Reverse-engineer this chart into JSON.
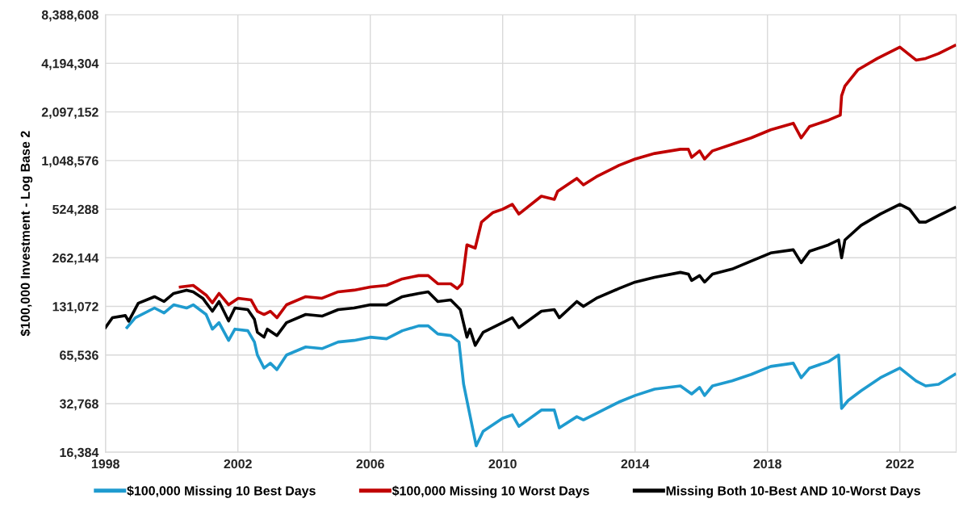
{
  "chart_data": {
    "type": "line",
    "ylabel": "$100,000 Investment - Log Base 2",
    "log": "y",
    "grid": true,
    "legend": "bottom",
    "marker": "none",
    "line_style": "solid",
    "xlim": [
      1998,
      2023.7
    ],
    "xticks": [
      1998,
      2002,
      2006,
      2010,
      2014,
      2018,
      2022
    ],
    "ylim": [
      16384,
      8388608
    ],
    "yticks": [
      {
        "value": 16384,
        "label": "16,384"
      },
      {
        "value": 32768,
        "label": "32,768"
      },
      {
        "value": 65536,
        "label": "65,536"
      },
      {
        "value": 131072,
        "label": "131,072"
      },
      {
        "value": 262144,
        "label": "262,144"
      },
      {
        "value": 524288,
        "label": "524,288"
      },
      {
        "value": 1048576,
        "label": "1,048,576"
      },
      {
        "value": 2097152,
        "label": "2,097,152"
      },
      {
        "value": 4194304,
        "label": "4,194,304"
      },
      {
        "value": 8388608,
        "label": "8,388,608"
      }
    ],
    "series": [
      {
        "name": "$100,000 Missing 10 Best Days",
        "color": "#1f9bcf",
        "x": [
          1998.65,
          1998.9,
          1999.48,
          1999.77,
          2000.06,
          2000.45,
          2000.65,
          2001.04,
          2001.23,
          2001.43,
          2001.72,
          2001.91,
          2002.3,
          2002.5,
          2002.59,
          2002.79,
          2002.98,
          2003.18,
          2003.47,
          2004.05,
          2004.54,
          2005.03,
          2005.51,
          2006.0,
          2006.49,
          2006.97,
          2007.46,
          2007.75,
          2008.04,
          2008.43,
          2008.68,
          2008.82,
          2009.02,
          2009.2,
          2009.41,
          2010.0,
          2010.29,
          2010.49,
          2011.17,
          2011.56,
          2011.71,
          2012.24,
          2012.44,
          2012.83,
          2013.51,
          2014.0,
          2014.59,
          2015.37,
          2015.71,
          2015.95,
          2016.1,
          2016.34,
          2016.93,
          2017.51,
          2018.1,
          2018.78,
          2019.02,
          2019.27,
          2019.85,
          2020.15,
          2020.24,
          2020.44,
          2020.83,
          2021.41,
          2022.0,
          2022.49,
          2022.78,
          2023.17,
          2023.66
        ],
        "values": [
          97000,
          111500,
          128100,
          119400,
          134100,
          128100,
          134100,
          116800,
          94800,
          104000,
          80700,
          94800,
          92700,
          78900,
          65500,
          54400,
          58300,
          53200,
          65500,
          73500,
          71800,
          78900,
          80700,
          84500,
          82600,
          92700,
          99300,
          99300,
          88500,
          86500,
          78900,
          43200,
          27200,
          17950,
          22100,
          26600,
          27900,
          23700,
          29900,
          29900,
          23200,
          27200,
          26000,
          28500,
          33500,
          36800,
          40300,
          42200,
          37600,
          41300,
          36800,
          42200,
          45300,
          49700,
          55700,
          58300,
          47400,
          54400,
          59700,
          65500,
          30600,
          34300,
          39400,
          47400,
          54400,
          45300,
          42200,
          43200,
          49700
        ]
      },
      {
        "name": "$100,000 Missing 10 Worst Days",
        "color": "#c00000",
        "x": [
          2000.26,
          2000.65,
          2001.04,
          2001.23,
          2001.43,
          2001.72,
          2002.01,
          2002.4,
          2002.59,
          2002.79,
          2002.98,
          2003.18,
          2003.47,
          2004.05,
          2004.54,
          2005.03,
          2005.51,
          2006.0,
          2006.49,
          2006.97,
          2007.46,
          2007.75,
          2008.04,
          2008.43,
          2008.63,
          2008.77,
          2008.92,
          2009.17,
          2009.36,
          2009.71,
          2010.0,
          2010.29,
          2010.49,
          2011.17,
          2011.56,
          2011.66,
          2012.24,
          2012.44,
          2012.83,
          2013.51,
          2014.0,
          2014.59,
          2015.37,
          2015.61,
          2015.71,
          2015.95,
          2016.1,
          2016.34,
          2016.93,
          2017.51,
          2018.1,
          2018.78,
          2019.02,
          2019.27,
          2019.85,
          2020.2,
          2020.24,
          2020.34,
          2020.73,
          2021.32,
          2022.0,
          2022.49,
          2022.78,
          2023.17,
          2023.66
        ],
        "values": [
          172900,
          176900,
          154100,
          138000,
          157700,
          134100,
          147200,
          143700,
          122300,
          116800,
          122300,
          111500,
          134100,
          150600,
          147200,
          161400,
          165200,
          172900,
          176900,
          194100,
          203300,
          203300,
          181000,
          181000,
          169000,
          181000,
          315400,
          301100,
          435700,
          500000,
          524300,
          562000,
          489100,
          630800,
          602400,
          675800,
          813000,
          741500,
          832300,
          978000,
          1072000,
          1160000,
          1232000,
          1232000,
          1097000,
          1204000,
          1072000,
          1204000,
          1321000,
          1449000,
          1626000,
          1784000,
          1449000,
          1703000,
          1868000,
          2002000,
          2642000,
          3034000,
          3820000,
          4494000,
          5284000,
          4392000,
          4494000,
          4816000,
          5407000
        ]
      },
      {
        "name": "Missing Both 10-Best AND 10-Worst Days",
        "color": "#000000",
        "x": [
          1998.0,
          1998.21,
          1998.6,
          1998.7,
          1998.99,
          1999.48,
          1999.77,
          2000.06,
          2000.45,
          2000.65,
          2000.94,
          2001.23,
          2001.43,
          2001.72,
          2001.91,
          2002.3,
          2002.5,
          2002.59,
          2002.79,
          2002.89,
          2003.18,
          2003.47,
          2004.05,
          2004.54,
          2005.03,
          2005.51,
          2006.0,
          2006.49,
          2006.97,
          2007.46,
          2007.75,
          2008.04,
          2008.43,
          2008.72,
          2008.92,
          2009.01,
          2009.17,
          2009.41,
          2010.0,
          2010.29,
          2010.49,
          2011.17,
          2011.56,
          2011.71,
          2012.24,
          2012.44,
          2012.83,
          2013.51,
          2014.0,
          2014.59,
          2015.37,
          2015.61,
          2015.71,
          2015.95,
          2016.1,
          2016.34,
          2016.93,
          2017.51,
          2018.1,
          2018.78,
          2019.02,
          2019.27,
          2019.85,
          2020.15,
          2020.24,
          2020.34,
          2020.83,
          2021.41,
          2022.0,
          2022.29,
          2022.59,
          2022.78,
          2023.17,
          2023.66
        ],
        "values": [
          97000,
          111700,
          115000,
          106000,
          137200,
          150600,
          140500,
          157700,
          165200,
          161400,
          147200,
          122300,
          140500,
          106500,
          128100,
          125200,
          109000,
          90600,
          84500,
          94800,
          86500,
          104000,
          116800,
          114100,
          125200,
          128100,
          134100,
          134000,
          150600,
          157700,
          161400,
          140500,
          143700,
          125200,
          84500,
          94800,
          75200,
          90600,
          104000,
          111500,
          97000,
          122300,
          125200,
          111500,
          140500,
          131000,
          147200,
          169000,
          185400,
          198600,
          212900,
          208000,
          189700,
          203300,
          185400,
          208000,
          223000,
          250000,
          280800,
          293800,
          244500,
          287400,
          315400,
          337900,
          262100,
          337900,
          416200,
          489100,
          562000,
          524300,
          435700,
          435700,
          478000,
          536500
        ]
      }
    ]
  }
}
